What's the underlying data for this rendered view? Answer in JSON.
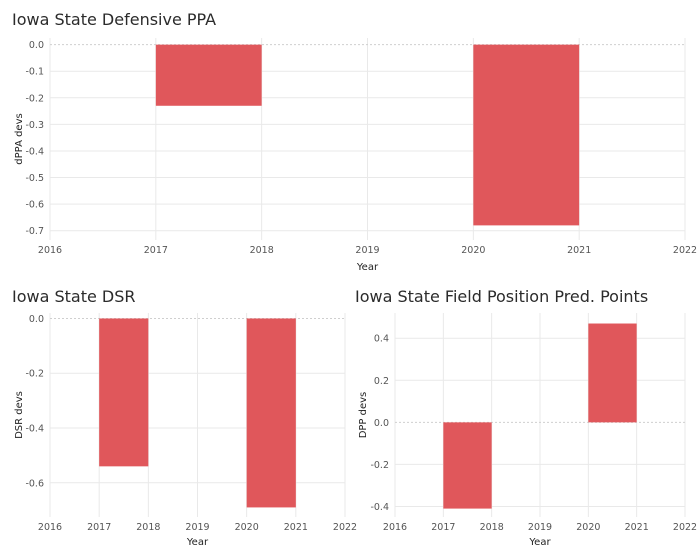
{
  "colors": {
    "bar": "#e0575b",
    "grid": "#e9e9e9",
    "zero": "#cfcfcf"
  },
  "chart_data": [
    {
      "type": "bar",
      "title": "Iowa State Defensive PPA",
      "xlabel": "Year",
      "ylabel": "dPPA devs",
      "x_ticks": [
        "2016",
        "2017",
        "2018",
        "2019",
        "2020",
        "2021",
        "2022"
      ],
      "y_ticks": [
        "0.0",
        "-0.1",
        "-0.2",
        "-0.3",
        "-0.4",
        "-0.5",
        "-0.6",
        "-0.7"
      ],
      "xlim": [
        2016,
        2022
      ],
      "ylim": [
        -0.735,
        0.025
      ],
      "bars": [
        {
          "year": 2017,
          "value": -0.23
        },
        {
          "year": 2020,
          "value": -0.68
        }
      ]
    },
    {
      "type": "bar",
      "title": "Iowa State DSR",
      "xlabel": "Year",
      "ylabel": "DSR devs",
      "x_ticks": [
        "2016",
        "2017",
        "2018",
        "2019",
        "2020",
        "2021",
        "2022"
      ],
      "y_ticks": [
        "0.0",
        "-0.2",
        "-0.4",
        "-0.6"
      ],
      "xlim": [
        2016,
        2022
      ],
      "ylim": [
        -0.725,
        0.02
      ],
      "bars": [
        {
          "year": 2017,
          "value": -0.54
        },
        {
          "year": 2020,
          "value": -0.69
        }
      ]
    },
    {
      "type": "bar",
      "title": "Iowa State Field Position Pred. Points",
      "xlabel": "Year",
      "ylabel": "DPP devs",
      "x_ticks": [
        "2016",
        "2017",
        "2018",
        "2019",
        "2020",
        "2021",
        "2022"
      ],
      "y_ticks": [
        "0.4",
        "0.2",
        "0.0",
        "-0.2",
        "-0.4"
      ],
      "xlim": [
        2016,
        2022
      ],
      "ylim": [
        -0.45,
        0.52
      ],
      "bars": [
        {
          "year": 2017,
          "value": -0.41
        },
        {
          "year": 2020,
          "value": 0.47
        }
      ]
    }
  ]
}
